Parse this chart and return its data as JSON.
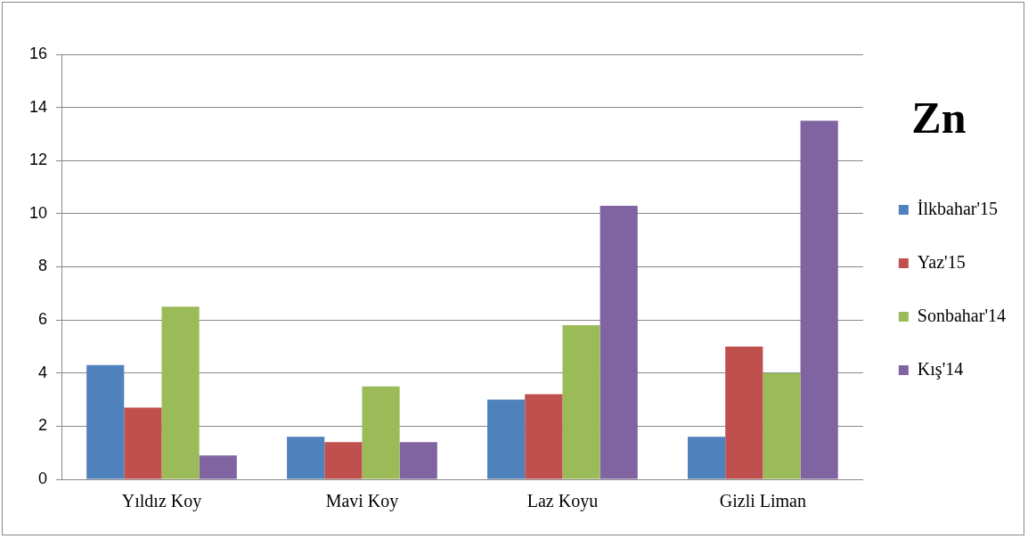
{
  "chart_data": {
    "type": "bar",
    "title": "Zn",
    "categories": [
      "Yıldız Koy",
      "Mavi Koy",
      "Laz Koyu",
      "Gizli Liman"
    ],
    "series": [
      {
        "name": "İlkbahar'15",
        "color": "#4f81bd",
        "values": [
          4.3,
          1.6,
          3.0,
          1.6
        ]
      },
      {
        "name": "Yaz'15",
        "color": "#c0504d",
        "values": [
          2.7,
          1.4,
          3.2,
          5.0
        ]
      },
      {
        "name": "Sonbahar'14",
        "color": "#9bbb59",
        "values": [
          6.5,
          3.5,
          5.8,
          4.0
        ]
      },
      {
        "name": "Kış'14",
        "color": "#8064a2",
        "values": [
          0.9,
          1.4,
          10.3,
          13.5
        ]
      }
    ],
    "ylim": [
      0,
      16
    ],
    "yticks": [
      0,
      2,
      4,
      6,
      8,
      10,
      12,
      14,
      16
    ],
    "grid": "y",
    "legend": "right"
  }
}
